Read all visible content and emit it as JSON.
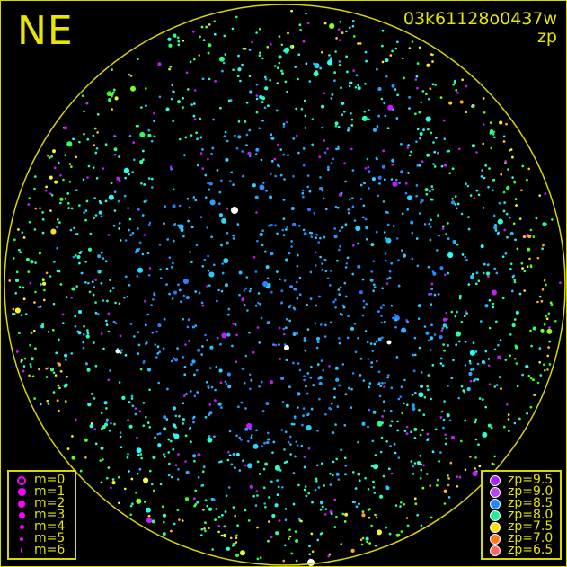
{
  "header": {
    "direction": "NE",
    "image_id": "03k61128o0437w",
    "mode": "zp"
  },
  "colors": {
    "frame": "#d8d800",
    "text": "#e6e600",
    "magnitude_marker": "#ff00ff"
  },
  "magnitude_legend": [
    {
      "label": "m=0",
      "style": "ring"
    },
    {
      "label": "m=1",
      "style": "dot"
    },
    {
      "label": "m=2",
      "style": "dot"
    },
    {
      "label": "m=3",
      "style": "dot"
    },
    {
      "label": "m=4",
      "style": "dot"
    },
    {
      "label": "m=5",
      "style": "dot"
    },
    {
      "label": "m=6",
      "style": "dot"
    }
  ],
  "zp_legend": [
    {
      "label": "zp=9.5",
      "color": "#aa22ee"
    },
    {
      "label": "zp=9.0",
      "color": "#bb44ee"
    },
    {
      "label": "zp=8.5",
      "color": "#2288ff"
    },
    {
      "label": "zp=8.0",
      "color": "#22ee99"
    },
    {
      "label": "zp=7.5",
      "color": "#ffdd00"
    },
    {
      "label": "zp=7.0",
      "color": "#ff7722"
    },
    {
      "label": "zp=6.5",
      "color": "#ff6666"
    }
  ]
}
